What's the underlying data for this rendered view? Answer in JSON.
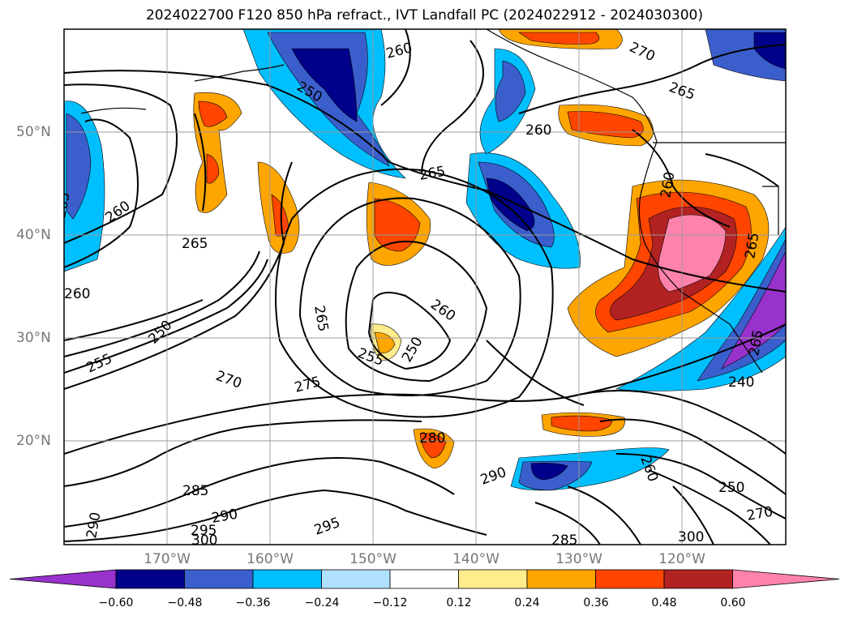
{
  "title": "2024022700 F120 850 hPa refract., IVT Landfall PC (2024022912 - 2024030300)",
  "lon_labels": [
    "170°W",
    "160°W",
    "150°W",
    "140°W",
    "130°W",
    "120°W"
  ],
  "lat_labels": [
    "50°N",
    "40°N",
    "30°N",
    "20°N"
  ],
  "contour_labels": [
    "260",
    "250",
    "265",
    "260",
    "265",
    "265",
    "260",
    "270",
    "265",
    "260",
    "260",
    "265",
    "250",
    "265",
    "260",
    "255",
    "250",
    "255",
    "270",
    "275",
    "280",
    "290",
    "285",
    "290",
    "295",
    "300",
    "295",
    "290",
    "260",
    "250",
    "240",
    "285",
    "300",
    "270",
    "265"
  ],
  "colorbar": {
    "ticks": [
      "−0.60",
      "−0.48",
      "−0.36",
      "−0.24",
      "−0.12",
      "0.12",
      "0.24",
      "0.36",
      "0.48",
      "0.60"
    ],
    "colors": [
      "#9932cc",
      "#00008b",
      "#3a5fcd",
      "#00bfff",
      "#b0e2ff",
      "#ffffff",
      "#ffec8b",
      "#ffa500",
      "#ff4500",
      "#b22222",
      "#ff82ab"
    ]
  }
}
